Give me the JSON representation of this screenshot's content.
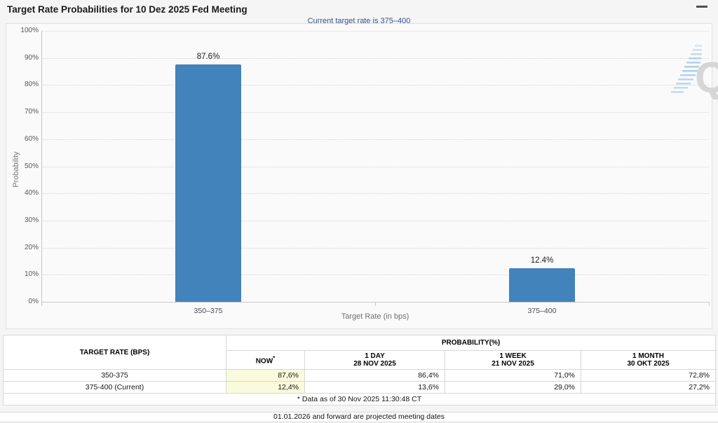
{
  "header": {
    "title": "Target Rate Probabilities for 10 Dez 2025 Fed Meeting"
  },
  "subtitle": "Current target rate is 375–400",
  "chart_data": {
    "type": "bar",
    "title": "Target Rate Probabilities for 10 Dez 2025 Fed Meeting",
    "subtitle": "Current target rate is 375–400",
    "categories": [
      "350–375",
      "375–400"
    ],
    "values": [
      87.6,
      12.4
    ],
    "labels": [
      "87.6%",
      "12.4%"
    ],
    "xlabel": "Target Rate (in bps)",
    "ylabel": "Probability",
    "ylim": [
      0,
      100
    ],
    "ytick_step": 10,
    "ytick_suffix": "%",
    "grid": "dotted horizontal",
    "legend": "none",
    "bar_color": "#4383bb",
    "watermark": "Q"
  },
  "table": {
    "col_rate_header": "TARGET RATE (BPS)",
    "probability_header": "PROBABILITY(%)",
    "subheaders": {
      "now": "NOW",
      "now_mark": "*",
      "day1_line1": "1 DAY",
      "day1_line2": "28 NOV 2025",
      "week1_line1": "1 WEEK",
      "week1_line2": "21 NOV 2025",
      "month1_line1": "1 MONTH",
      "month1_line2": "30 OKT 2025"
    },
    "rows": [
      {
        "rate": "350-375",
        "now": "87,6%",
        "day1": "86,4%",
        "week1": "71,0%",
        "month1": "72,8%"
      },
      {
        "rate": "375-400 (Current)",
        "now": "12,4%",
        "day1": "13,6%",
        "week1": "29,0%",
        "month1": "27,2%"
      }
    ],
    "footnote": "* Data as of 30 Nov 2025 11:30:48 CT"
  },
  "footer": {
    "note": "01.01.2026 and forward are projected meeting dates"
  },
  "colors": {
    "bar": "#4383bb",
    "subtitle_text": "#3e5184",
    "now_cell_highlight": "#fafadc",
    "page_background": "#f5f5f6"
  }
}
